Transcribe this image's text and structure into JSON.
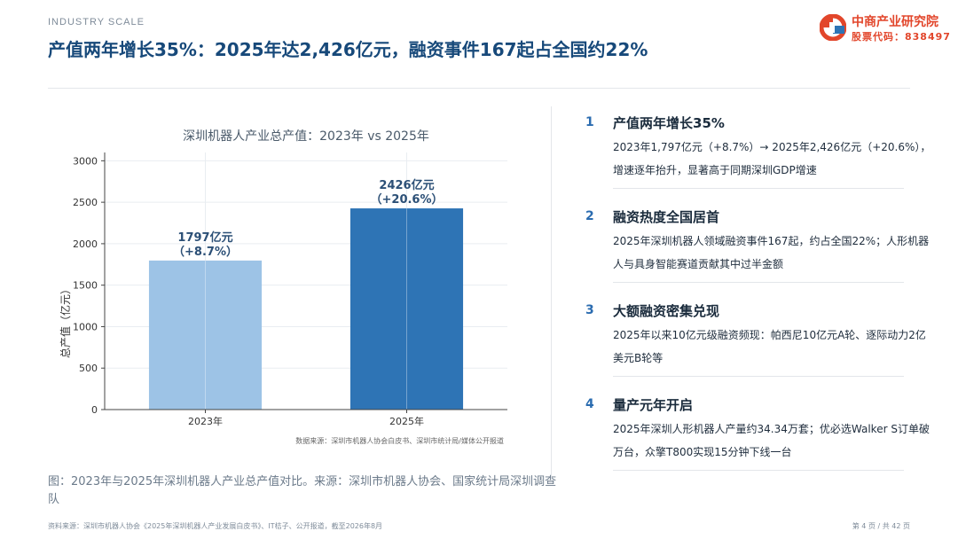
{
  "header": {
    "eyebrow": "INDUSTRY SCALE",
    "headline": "产值两年增长35%：2025年达2,426亿元，融资事件167起占全国约22%"
  },
  "logo": {
    "name": "中商产业研究院",
    "code": "股票代码：838497",
    "colors": {
      "red": "#e2462b",
      "blue": "#2e74b5"
    }
  },
  "chart_data": {
    "type": "bar",
    "title": "深圳机器人产业总产值：2023年 vs 2025年",
    "categories": [
      "2023年",
      "2025年"
    ],
    "values": [
      1797,
      2426
    ],
    "value_labels": [
      "1797亿元",
      "2426亿元"
    ],
    "growth_labels": [
      "（+8.7%）",
      "（+20.6%）"
    ],
    "bar_colors": [
      "#9dc3e6",
      "#2e74b5"
    ],
    "label_color": "#2b4f76",
    "ylabel": "总产值（亿元）",
    "xlabel": "",
    "ylim": [
      0,
      3100
    ],
    "yticks": [
      0,
      500,
      1000,
      1500,
      2000,
      2500,
      3000
    ],
    "grid": true,
    "source_note": "数据来源：深圳市机器人协会白皮书、深圳市统计局/媒体公开报道"
  },
  "caption": "图：2023年与2025年深圳机器人产业总产值对比。来源：深圳市机器人协会、国家统计局深圳调查队",
  "points": [
    {
      "num": "1",
      "title": "产值两年增长35%",
      "body": "2023年1,797亿元（+8.7%）→ 2025年2,426亿元（+20.6%），增速逐年抬升，显著高于同期深圳GDP增速"
    },
    {
      "num": "2",
      "title": "融资热度全国居首",
      "body": "2025年深圳机器人领域融资事件167起，约占全国22%；人形机器人与具身智能赛道贡献其中过半金额"
    },
    {
      "num": "3",
      "title": "大额融资密集兑现",
      "body": "2025年以来10亿元级融资频现：帕西尼10亿元A轮、逐际动力2亿美元B轮等"
    },
    {
      "num": "4",
      "title": "量产元年开启",
      "body": "2025年深圳人形机器人产量约34.34万套；优必选Walker S订单破万台，众擎T800实现15分钟下线一台"
    }
  ],
  "footer": {
    "source": "资料来源：深圳市机器人协会《2025年深圳机器人产业发展白皮书》、IT桔子、公开报道，截至2026年8月",
    "page": "第 4 页 / 共 42 页"
  }
}
